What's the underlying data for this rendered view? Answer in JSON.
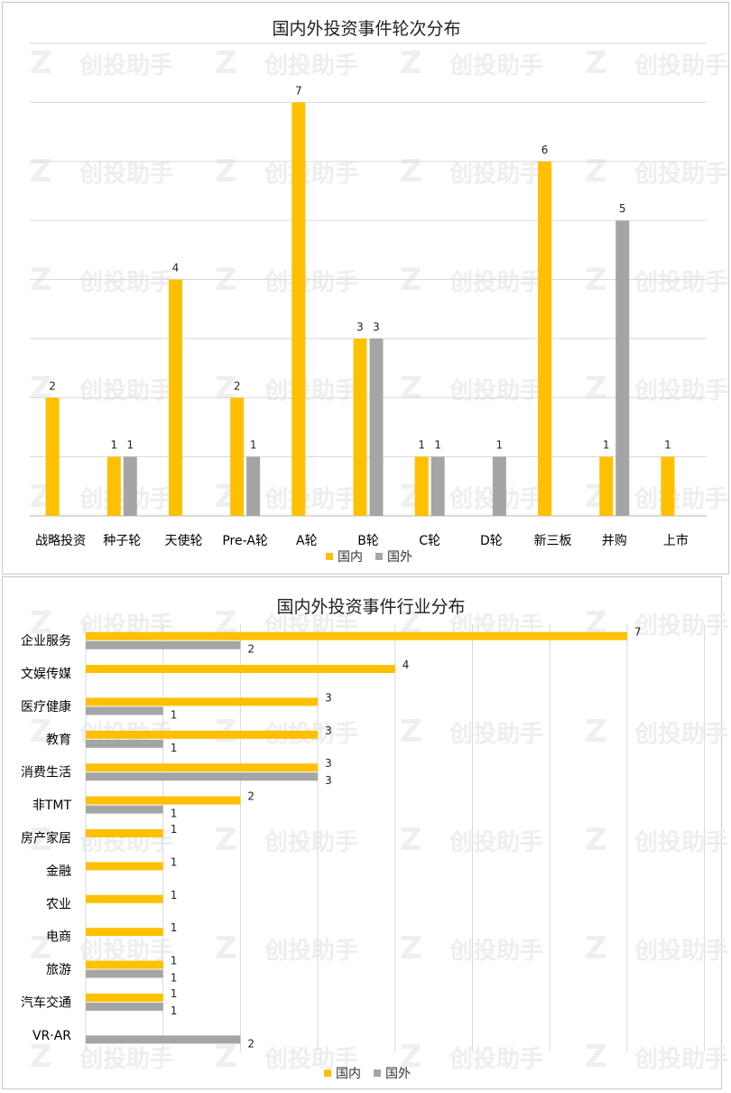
{
  "chart_data": [
    {
      "type": "bar",
      "title": "国内外投资事件轮次分布",
      "categories": [
        "战略投资",
        "种子轮",
        "天使轮",
        "Pre-A轮",
        "A轮",
        "B轮",
        "C轮",
        "D轮",
        "新三板",
        "并购",
        "上市"
      ],
      "series": [
        {
          "name": "国内",
          "color": "#FFC000",
          "values": [
            2,
            1,
            4,
            2,
            7,
            3,
            1,
            null,
            6,
            1,
            1
          ]
        },
        {
          "name": "国外",
          "color": "#A5A5A5",
          "values": [
            null,
            1,
            null,
            1,
            null,
            3,
            1,
            1,
            null,
            5,
            null
          ]
        }
      ],
      "ylim": [
        0,
        8
      ],
      "grid": true,
      "legend": "bottom"
    },
    {
      "type": "bar",
      "orientation": "horizontal",
      "title": "国内外投资事件行业分布",
      "categories": [
        "企业服务",
        "文娱传媒",
        "医疗健康",
        "教育",
        "消费生活",
        "非TMT",
        "房产家居",
        "金融",
        "农业",
        "电商",
        "旅游",
        "汽车交通",
        "VR·AR"
      ],
      "series": [
        {
          "name": "国内",
          "color": "#FFC000",
          "values": [
            7,
            4,
            3,
            3,
            3,
            2,
            1,
            1,
            1,
            1,
            1,
            1,
            null
          ]
        },
        {
          "name": "国外",
          "color": "#A5A5A5",
          "values": [
            2,
            null,
            1,
            1,
            3,
            1,
            null,
            null,
            null,
            null,
            1,
            1,
            2
          ]
        }
      ],
      "xlim": [
        0,
        7
      ],
      "grid": true,
      "legend": "bottom"
    }
  ],
  "watermark": {
    "text": "创投助手",
    "mark": "Z"
  }
}
